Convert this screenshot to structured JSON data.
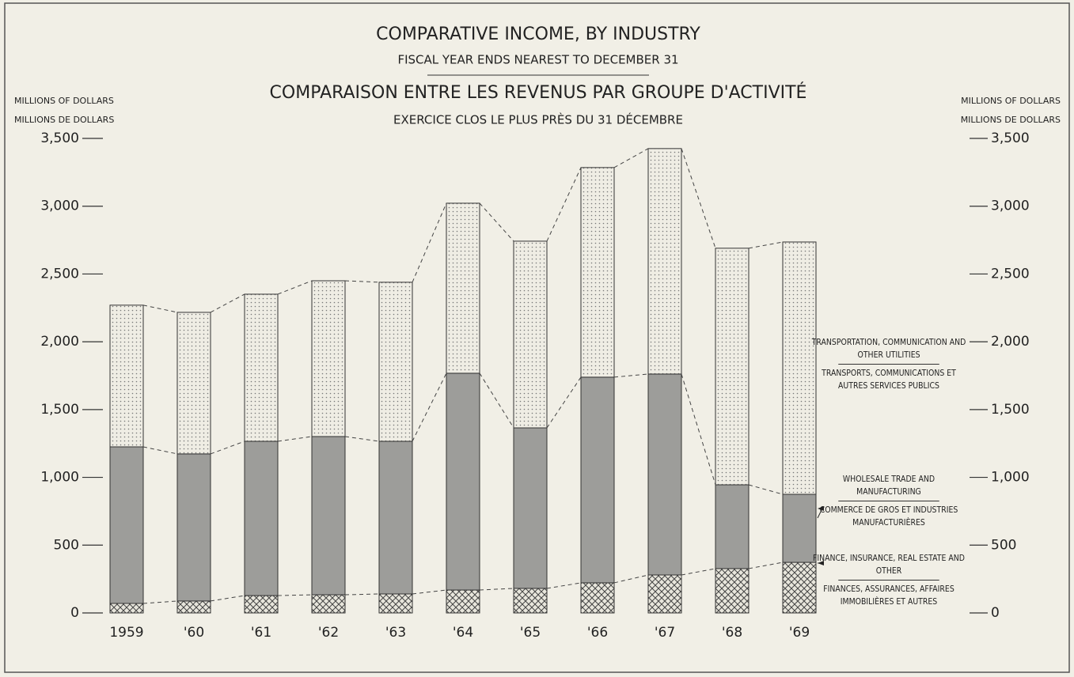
{
  "chart_data": {
    "type": "stacked_bar",
    "title": "COMPARATIVE INCOME, BY INDUSTRY",
    "subtitle": "FISCAL YEAR ENDS NEAREST TO DECEMBER 31",
    "title_fr": "COMPARAISON ENTRE LES REVENUS PAR GROUPE D'ACTIVITÉ",
    "subtitle_fr": "EXERCICE CLOS LE PLUS PRÈS DU 31 DÉCEMBRE",
    "ylabel": [
      "MILLIONS OF DOLLARS",
      "MILLIONS DE DOLLARS"
    ],
    "y2label": [
      "MILLIONS OF DOLLARS",
      "MILLIONS DE DOLLARS"
    ],
    "categories": [
      "1959",
      "'60",
      "'61",
      "'62",
      "'63",
      "'64",
      "'65",
      "'66",
      "'67",
      "'68",
      "'69"
    ],
    "series": [
      {
        "name": "FINANCE, INSURANCE, REAL ESTATE AND OTHER",
        "name_fr": "FINANCES, ASSURANCES, AFFAIRES IMMOBILIÈRES ET AUTRES",
        "pattern": "crosshatch",
        "color": "#4a4a4a",
        "values": [
          70,
          88,
          128,
          134,
          140,
          169,
          181,
          222,
          280,
          327,
          373
        ]
      },
      {
        "name": "WHOLESALE TRADE AND MANUFACTURING",
        "name_fr": "COMMERCE DE GROS ET INDUSTRIES MANUFACTURIÈRES",
        "pattern": "solid",
        "color": "#9d9d9a",
        "values": [
          1155,
          1085,
          1138,
          1167,
          1126,
          1599,
          1184,
          1517,
          1482,
          618,
          502
        ]
      },
      {
        "name": "TRANSPORTATION, COMMUNICATION AND OTHER UTILITIES",
        "name_fr": "TRANSPORTS, COMMUNICATIONS ET AUTRES SERVICES PUBLICS",
        "pattern": "dots",
        "color": "#8a8a8a",
        "values": [
          1045,
          1044,
          1085,
          1149,
          1173,
          1254,
          1377,
          1546,
          1663,
          1745,
          1861
        ]
      }
    ],
    "ylim": [
      0,
      3500
    ],
    "yticks": [
      0,
      500,
      {
        "value": 1000,
        "label": "1,000"
      },
      {
        "value": 1500,
        "label": "1,500"
      },
      {
        "value": 2000,
        "label": "2,000"
      },
      {
        "value": 2500,
        "label": "2,500"
      },
      {
        "value": 3000,
        "label": "3,000"
      },
      {
        "value": 3500,
        "label": "3,500"
      }
    ],
    "y2lim": [
      0,
      3500
    ],
    "y2ticks": [
      0,
      500,
      {
        "value": 1000,
        "label": "1,000"
      },
      {
        "value": 1500,
        "label": "1,500"
      },
      {
        "value": 2000,
        "label": "2,000"
      },
      {
        "value": 2500,
        "label": "2,500"
      },
      {
        "value": 3000,
        "label": "3,000"
      },
      {
        "value": 3500,
        "label": "3,500"
      }
    ],
    "grid": false
  }
}
